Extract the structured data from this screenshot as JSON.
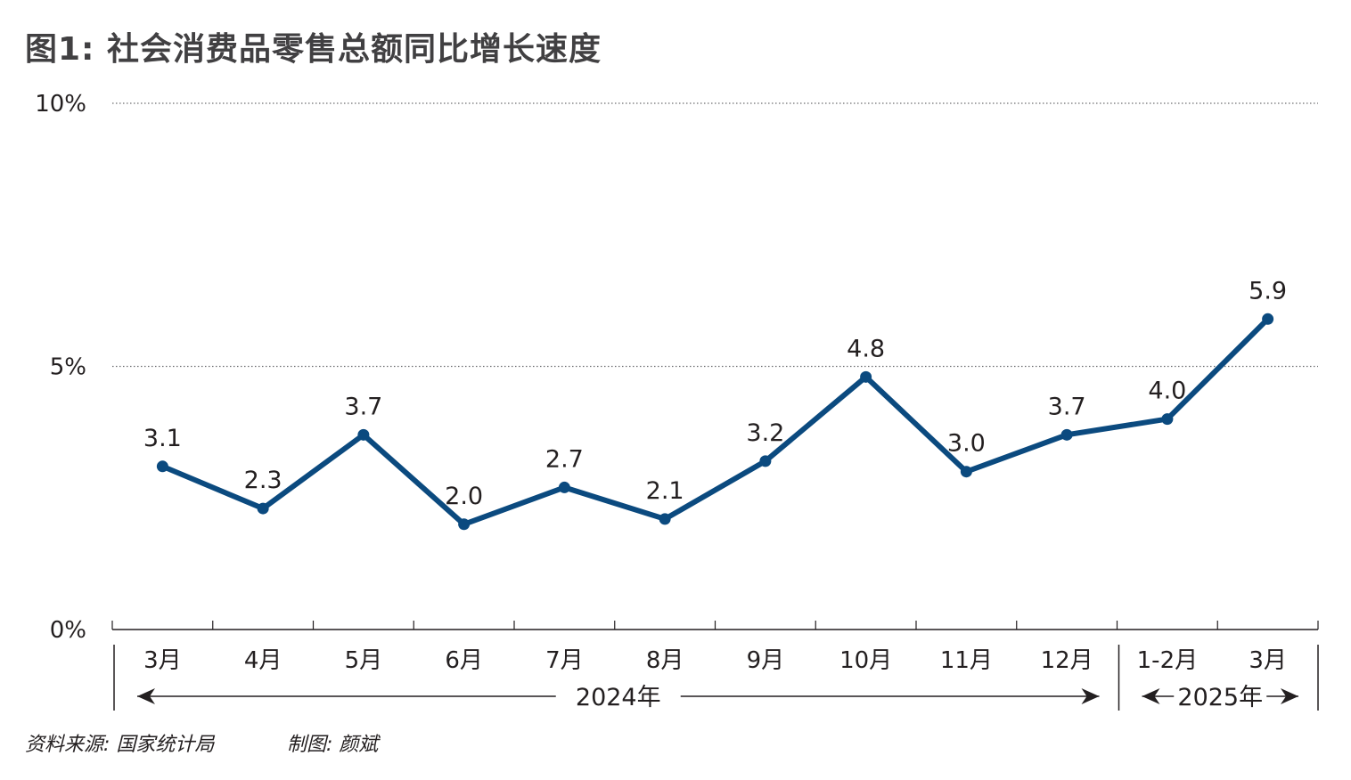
{
  "title": "图1: 社会消费品零售总额同比增长速度",
  "chart_data": {
    "type": "line",
    "categories": [
      "3月",
      "4月",
      "5月",
      "6月",
      "7月",
      "8月",
      "9月",
      "10月",
      "11月",
      "12月",
      "1-2月",
      "3月"
    ],
    "series": [
      {
        "values": [
          3.1,
          2.3,
          3.7,
          2.0,
          2.7,
          2.1,
          3.2,
          4.8,
          3.0,
          3.7,
          4.0,
          5.9
        ]
      }
    ],
    "data_labels": [
      "3.1",
      "2.3",
      "3.7",
      "2.0",
      "2.7",
      "2.1",
      "3.2",
      "4.8",
      "3.0",
      "3.7",
      "4.0",
      "5.9"
    ],
    "y_ticks": [
      {
        "value": 0,
        "label": "0%"
      },
      {
        "value": 5,
        "label": "5%"
      },
      {
        "value": 10,
        "label": "10%"
      }
    ],
    "ylim": [
      0,
      10
    ],
    "grid": "dotted horizontal at 5% and 10%",
    "year_groups": [
      {
        "label": "2024年",
        "first": 0,
        "last": 9
      },
      {
        "label": "2025年",
        "first": 10,
        "last": 11
      }
    ],
    "line_color": "#0b4a7f"
  },
  "footer": {
    "source": "资料来源: 国家统计局",
    "credit": "制图: 颜斌"
  }
}
